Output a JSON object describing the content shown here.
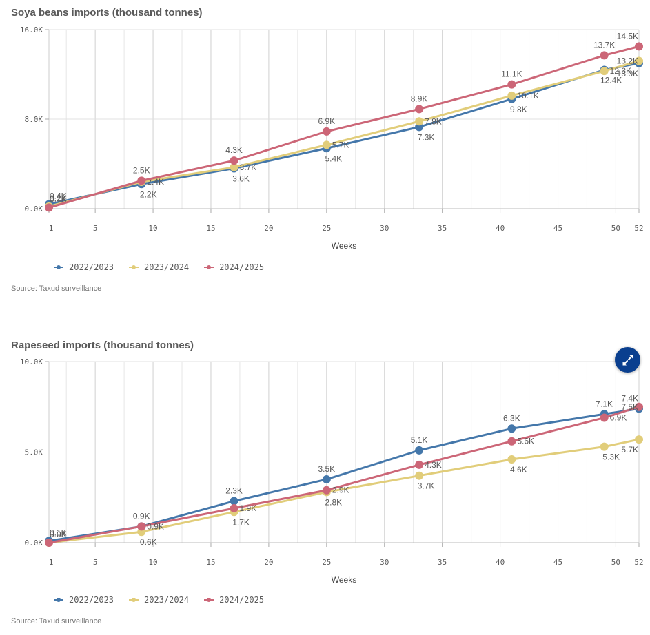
{
  "colors": {
    "series": [
      "#4477aa",
      "#e1cd7a",
      "#cc6677"
    ],
    "grid": "#e0e0e0",
    "grid_major": "#cccccc",
    "axis": "#aaaaaa",
    "expand_button": "#0a3f8f"
  },
  "expand_button": {
    "icon": "expand-arrows-icon",
    "label": "Expand"
  },
  "chart_data": [
    {
      "type": "line",
      "title": "Soya beans imports (thousand tonnes)",
      "xlabel": "Weeks",
      "ylabel": "",
      "xlim": [
        1,
        52
      ],
      "ylim": [
        0,
        16000
      ],
      "x_ticks": [
        1,
        5,
        10,
        15,
        20,
        25,
        30,
        35,
        40,
        45,
        50,
        52
      ],
      "y_ticks": [
        0,
        8000,
        16000
      ],
      "y_tick_labels": [
        "0.0K",
        "8.0K",
        "16.0K"
      ],
      "grid": true,
      "legend_position": "bottom-left",
      "x": [
        1,
        9,
        17,
        25,
        33,
        41,
        49,
        52
      ],
      "series": [
        {
          "name": "2022/2023",
          "values": [
            400,
            2200,
            3600,
            5400,
            7300,
            9800,
            12400,
            13000
          ],
          "labels": [
            "0.4K",
            "2.2K",
            "3.6K",
            "5.4K",
            "7.3K",
            "9.8K",
            "12.4K",
            "13.0K"
          ]
        },
        {
          "name": "2023/2024",
          "values": [
            200,
            2400,
            3700,
            5700,
            7800,
            10100,
            12300,
            13200
          ],
          "labels": [
            "0.2K",
            "2.4K",
            "3.7K",
            "5.7K",
            "7.8K",
            "10.1K",
            "12.3K",
            "13.2K"
          ]
        },
        {
          "name": "2024/2025",
          "values": [
            100,
            2500,
            4300,
            6900,
            8900,
            11100,
            13700,
            14500
          ],
          "labels": [
            "0.1K",
            "2.5K",
            "4.3K",
            "6.9K",
            "8.9K",
            "11.1K",
            "13.7K",
            "14.5K"
          ]
        }
      ],
      "source": "Source: Taxud surveillance"
    },
    {
      "type": "line",
      "title": "Rapeseed imports (thousand tonnes)",
      "xlabel": "Weeks",
      "ylabel": "",
      "xlim": [
        1,
        52
      ],
      "ylim": [
        0,
        10000
      ],
      "x_ticks": [
        1,
        5,
        10,
        15,
        20,
        25,
        30,
        35,
        40,
        45,
        50,
        52
      ],
      "y_ticks": [
        0,
        5000,
        10000
      ],
      "y_tick_labels": [
        "0.0K",
        "5.0K",
        "10.0K"
      ],
      "grid": true,
      "legend_position": "bottom-left",
      "x": [
        1,
        9,
        17,
        25,
        33,
        41,
        49,
        52
      ],
      "series": [
        {
          "name": "2022/2023",
          "values": [
            100,
            900,
            2300,
            3500,
            5100,
            6300,
            7100,
            7400
          ],
          "labels": [
            "0.1K",
            "0.9K",
            "2.3K",
            "3.5K",
            "5.1K",
            "6.3K",
            "7.1K",
            "7.4K"
          ]
        },
        {
          "name": "2023/2024",
          "values": [
            0,
            600,
            1700,
            2800,
            3700,
            4600,
            5300,
            5700
          ],
          "labels": [
            "0.0K",
            "0.6K",
            "1.7K",
            "2.8K",
            "3.7K",
            "4.6K",
            "5.3K",
            "5.7K"
          ]
        },
        {
          "name": "2024/2025",
          "values": [
            0,
            900,
            1900,
            2900,
            4300,
            5600,
            6900,
            7500
          ],
          "labels": [
            "0.0K",
            "0.9K",
            "1.9K",
            "2.9K",
            "4.3K",
            "5.6K",
            "6.9K",
            "7.5K"
          ]
        }
      ],
      "source": "Source: Taxud surveillance"
    }
  ]
}
